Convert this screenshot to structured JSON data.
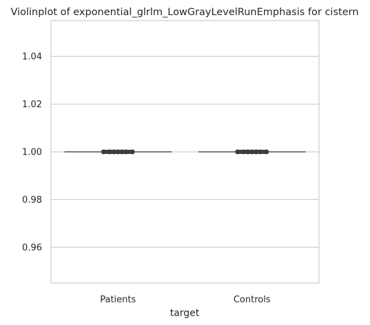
{
  "chart_data": {
    "type": "violin",
    "title": "Violinplot of exponential_glrlm_LowGrayLevelRunEmphasis for cistern",
    "xlabel": "target",
    "ylabel": "",
    "categories": [
      "Patients",
      "Controls"
    ],
    "values": [
      1.0,
      1.0
    ],
    "ylim": [
      0.945,
      1.055
    ],
    "yticks": [
      0.96,
      0.98,
      1.0,
      1.02,
      1.04
    ],
    "ytick_labels": [
      "0.96",
      "0.98",
      "1.00",
      "1.02",
      "1.04"
    ],
    "grid": "horizontal",
    "legend": "none",
    "colors": {
      "grid": "#cccccc",
      "frame": "#cccccc",
      "violin_line": "#555555",
      "box_line": "#3d3d3d",
      "points": "#3d3d3d",
      "text": "#262626"
    }
  }
}
